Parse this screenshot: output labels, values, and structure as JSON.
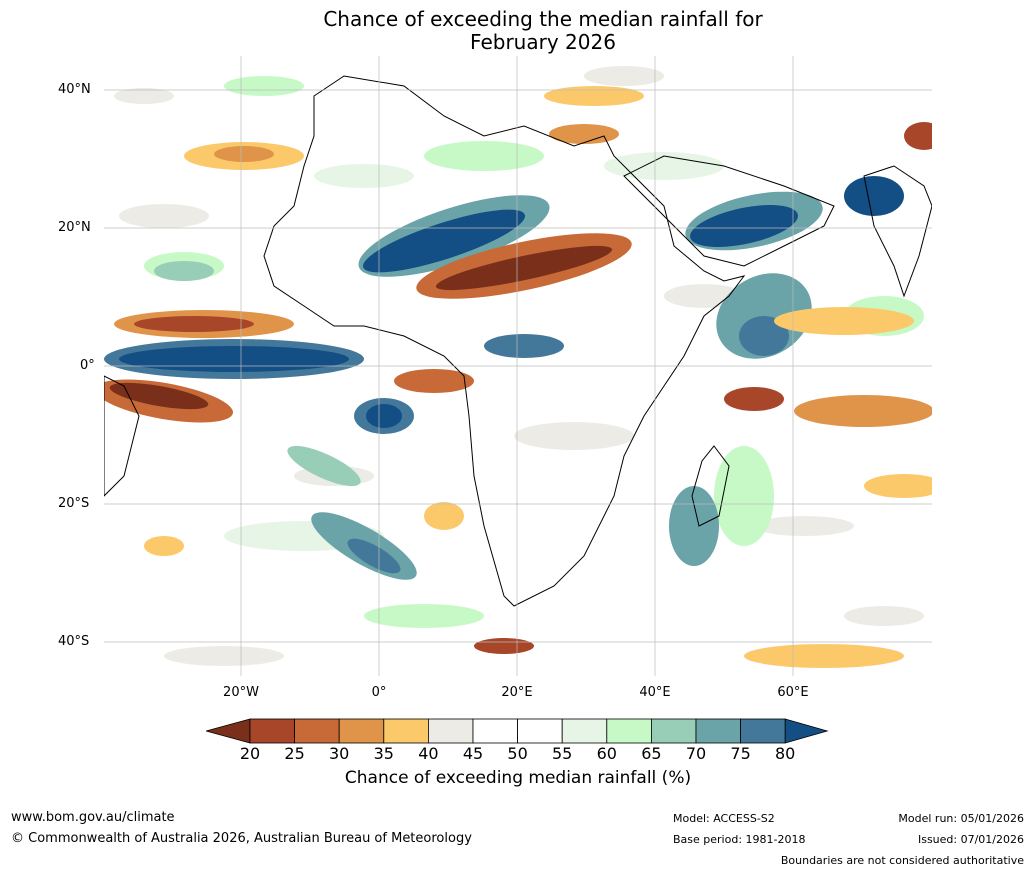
{
  "title": {
    "line1": "Chance of exceeding the median rainfall for",
    "line2": "February 2026"
  },
  "axes": {
    "lat_labels": [
      "40°N",
      "20°N",
      "0°",
      "20°S",
      "40°S"
    ],
    "lon_labels": [
      "20°W",
      "0°",
      "20°E",
      "40°E",
      "60°E"
    ]
  },
  "colorbar": {
    "ticks": [
      "20",
      "25",
      "30",
      "35",
      "40",
      "45",
      "50",
      "55",
      "60",
      "65",
      "70",
      "75",
      "80"
    ],
    "colors": [
      "#7a2f1a",
      "#a8462a",
      "#c86a38",
      "#e0944a",
      "#fcc96a",
      "#ecebe6",
      "#ffffff",
      "#ffffff",
      "#e6f5e6",
      "#c6f9c6",
      "#98cdb8",
      "#6aa3a8",
      "#44789a",
      "#134e84"
    ],
    "label": "Chance of exceeding median rainfall (%)"
  },
  "map": {
    "ocean_color": "#ffffff",
    "land_color": "#ffffff"
  },
  "footer": {
    "website": "www.bom.gov.au/climate",
    "copyright": "© Commonwealth of Australia 2026, Australian Bureau of Meteorology",
    "model": "Model: ACCESS-S2",
    "base_period": "Base period: 1981-2018",
    "model_run": "Model run: 05/01/2026",
    "issued": "Issued: 07/01/2026",
    "disclaimer": "Boundaries are not considered authoritative"
  }
}
